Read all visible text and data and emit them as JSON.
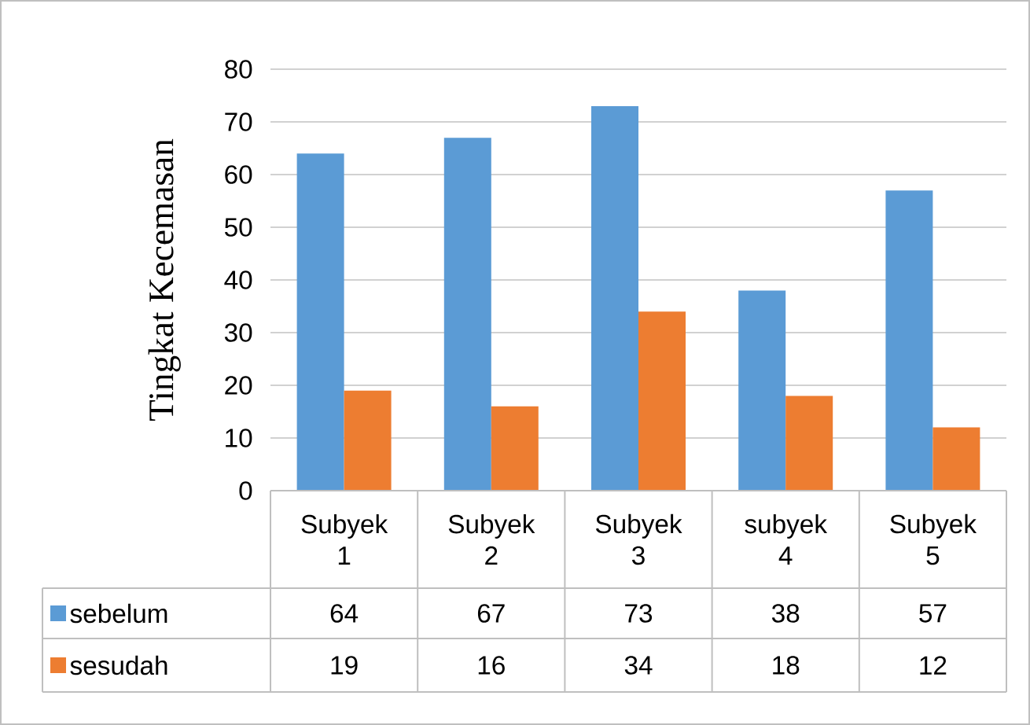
{
  "chart_data": {
    "type": "bar",
    "ylabel": "Tingkat Kecemasan",
    "categories": [
      "Subyek 1",
      "Subyek 2",
      "Subyek 3",
      "subyek 4",
      "Subyek 5"
    ],
    "series": [
      {
        "name": "sebelum",
        "color": "#5b9bd5",
        "values": [
          64,
          67,
          73,
          38,
          57
        ]
      },
      {
        "name": "sesudah",
        "color": "#ed7d31",
        "values": [
          19,
          16,
          34,
          18,
          12
        ]
      }
    ],
    "ylim": [
      0,
      80
    ],
    "yticks": [
      0,
      10,
      20,
      30,
      40,
      50,
      60,
      70,
      80
    ],
    "grid": "y",
    "legend": "bottom",
    "data_labels": true
  }
}
